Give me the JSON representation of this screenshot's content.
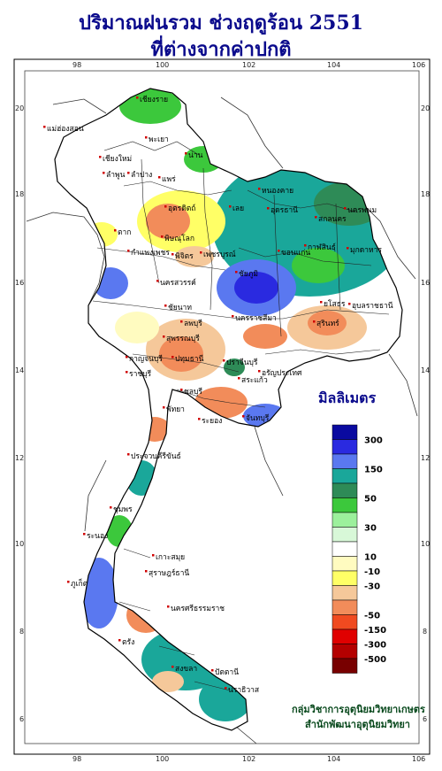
{
  "title": {
    "line1": "ปริมาณฝนรวม ช่วงฤดูร้อน 2551",
    "line2": "ที่ต่างจากค่าปกติ"
  },
  "axes": {
    "lon_ticks": [
      "98",
      "100",
      "102",
      "104",
      "106"
    ],
    "lat_ticks": [
      "20",
      "18",
      "16",
      "14",
      "12",
      "10",
      "8",
      "6"
    ]
  },
  "legend": {
    "unit": "มิลลิเมตร",
    "labels": [
      "300",
      "150",
      "50",
      "30",
      "10",
      "-10",
      "-30",
      "-50",
      "-150",
      "-300",
      "-500"
    ],
    "colors": [
      "#0a0aa0",
      "#2a2ae0",
      "#5a78f0",
      "#1aa79a",
      "#2e8b57",
      "#3cc83c",
      "#9cf09c",
      "#d8f8d8",
      "#ffffff",
      "#fffbc0",
      "#ffff66",
      "#f5c89a",
      "#f28c5a",
      "#f04a20",
      "#e00000",
      "#b40000",
      "#780000"
    ]
  },
  "credit": {
    "line1": "กลุ่มวิชาการอุตุนิยมวิทยาเกษตร",
    "line2": "สำนักพัฒนาอุตุนิยมวิทยา"
  },
  "places": [
    "เชียงราย",
    "แม่ฮ่องสอน",
    "เชียงใหม่",
    "พะเยา",
    "น่าน",
    "ลำพูน",
    "ลำปาง",
    "แพร่",
    "หนองคาย",
    "อุตรดิตถ์",
    "อุดรธานี",
    "สกลนคร",
    "นครพนม",
    "เลย",
    "ตาก",
    "พิษณุโลก",
    "กาฬสินธุ์",
    "มุกดาหาร",
    "กำแพงเพชร",
    "พิจิตร",
    "เพชรบูรณ์",
    "ขอนแก่น",
    "ชัยภูมิ",
    "นครสวรรค์",
    "อุบลราชธานี",
    "ยโสธร",
    "ชัยนาท",
    "นครราชสีมา",
    "สุรินทร์",
    "ลพบุรี",
    "สุพรรณบุรี",
    "กาญจนบุรี",
    "ปทุมธานี",
    "ราชบุรี",
    "ปราจีนบุรี",
    "อรัญประเทศ",
    "สระแก้ว",
    "ชลบุรี",
    "ระยอง",
    "พัทยา",
    "จันทบุรี",
    "ประจวบคีรีขันธ์",
    "ชุมพร",
    "ระนอง",
    "เกาะสมุย",
    "สุราษฎร์ธานี",
    "นครศรีธรรมราช",
    "ภูเก็ต",
    "ตรัง",
    "สงขลา",
    "ปัตตานี",
    "นราธิวาส"
  ]
}
